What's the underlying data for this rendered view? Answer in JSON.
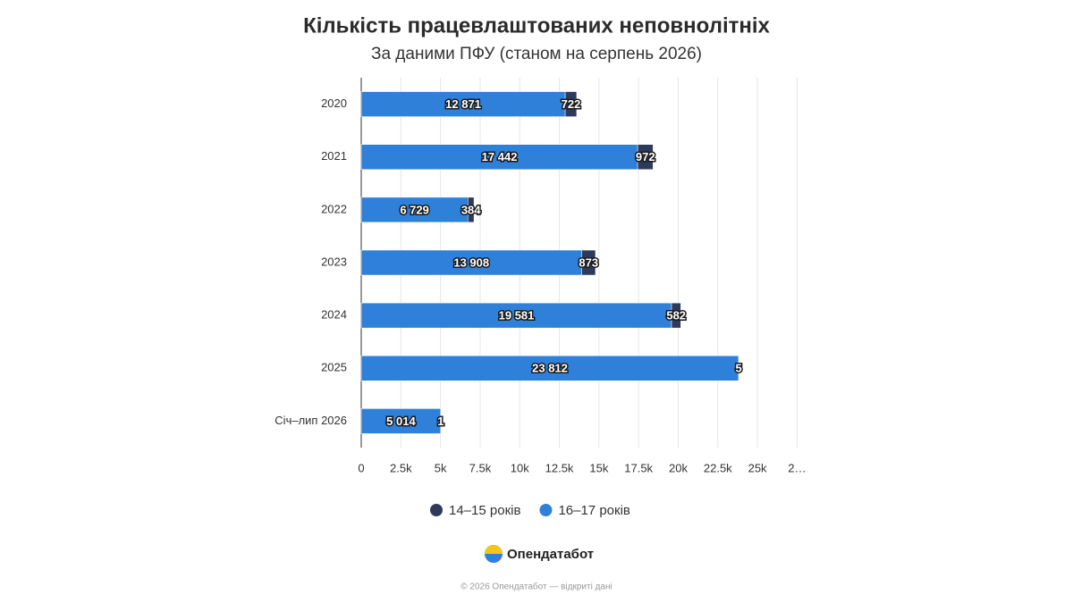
{
  "chart_data": {
    "type": "stacked_barh",
    "title": "Кількість працевлаштованих неповнолітніх",
    "subtitle": "За даними ПФУ (станом на серпень 2026)",
    "categories": [
      "2020",
      "2021",
      "2022",
      "2023",
      "2024",
      "2025",
      "Січ–лип 2026"
    ],
    "series": [
      {
        "name": "14–15 років",
        "color": "#2d3a5c",
        "values": [
          722,
          972,
          384,
          873,
          582,
          5,
          1
        ]
      },
      {
        "name": "16–17 років",
        "color": "#2f80d9",
        "values": [
          12871,
          17442,
          6729,
          13908,
          19581,
          23812,
          5014
        ],
        "value_labels": [
          "12 871",
          "17 442",
          "6 729",
          "13 908",
          "19 581",
          "23 812",
          "5 014"
        ]
      }
    ],
    "xlim": [
      0,
      27500
    ],
    "xticks": [
      0,
      {
        "value": 2500,
        "label": "2.5k"
      },
      {
        "value": 5000,
        "label": "5k"
      },
      {
        "value": 7500,
        "label": "7.5k"
      },
      {
        "value": 10000,
        "label": "10k"
      },
      {
        "value": 12500,
        "label": "12.5k"
      },
      {
        "value": 15000,
        "label": "15k"
      },
      {
        "value": 17500,
        "label": "17.5k"
      },
      {
        "value": 20000,
        "label": "20k"
      },
      {
        "value": 22500,
        "label": "22.5k"
      },
      {
        "value": 25000,
        "label": "25k"
      },
      {
        "value": 27500,
        "label": "2…"
      }
    ],
    "grid": true,
    "legend": "bottom"
  },
  "brand": "Опендатабот",
  "footer": "© 2026 Опендатабот — відкриті дані"
}
